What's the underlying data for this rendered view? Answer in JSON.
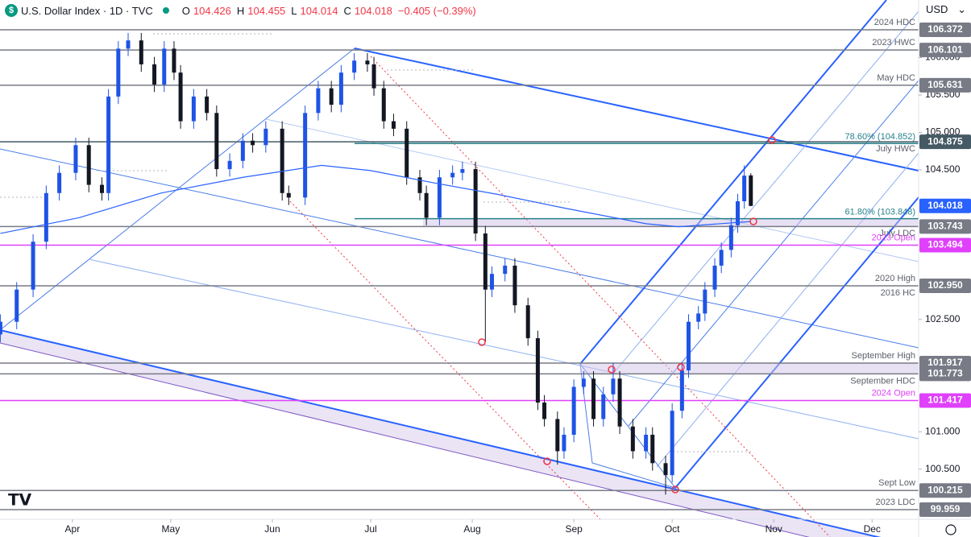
{
  "header": {
    "icon": "$",
    "title": "U.S. Dollar Index · 1D · TVC",
    "ohlc_labels": [
      "O",
      "H",
      "L",
      "C"
    ],
    "change": "−0.405 (−0.39%)",
    "currency": "USD"
  },
  "chart_data": {
    "type": "candlestick",
    "up_color": "#1e53e5",
    "down_color": "#131722",
    "xlim": [
      68.9,
      349.2
    ],
    "xticks": [
      {
        "value": 91,
        "label": "Apr"
      },
      {
        "value": 121,
        "label": "May"
      },
      {
        "value": 152,
        "label": "Jun"
      },
      {
        "value": 182,
        "label": "Jul"
      },
      {
        "value": 213,
        "label": "Aug"
      },
      {
        "value": 244,
        "label": "Sep"
      },
      {
        "value": 274,
        "label": "Oct"
      },
      {
        "value": 305,
        "label": "Nov"
      },
      {
        "value": 335,
        "label": "Dec"
      }
    ],
    "ylim": [
      99.83,
      106.77
    ],
    "yticks": [
      {
        "value": 106,
        "label": "106.000"
      },
      {
        "value": 105.5,
        "label": "105.500"
      },
      {
        "value": 105,
        "label": "105.000"
      },
      {
        "value": 104.5,
        "label": "104.500"
      },
      {
        "value": 102.5,
        "label": "102.500"
      },
      {
        "value": 101,
        "label": "101.000"
      },
      {
        "value": 100.5,
        "label": "100.500"
      }
    ],
    "grid": false,
    "x": [
      69,
      74,
      79,
      83,
      87,
      92,
      96,
      100,
      102,
      105,
      108,
      112,
      116,
      119,
      122,
      124,
      128,
      132,
      135,
      139,
      143,
      146,
      150,
      155,
      157,
      162,
      166,
      170,
      173,
      177,
      181,
      183,
      186,
      189,
      193,
      197,
      199,
      203,
      207,
      210,
      214,
      217,
      219,
      223,
      226,
      230,
      233,
      235,
      239,
      241,
      244,
      247,
      250,
      253,
      256,
      258,
      262,
      266,
      268,
      272,
      274,
      277,
      279,
      282,
      284,
      287,
      289,
      292,
      294,
      296,
      298
    ],
    "open": [
      102.3,
      102.47,
      102.9,
      103.54,
      104.19,
      104.46,
      104.83,
      104.3,
      104.19,
      105.48,
      106.12,
      106.23,
      105.91,
      105.64,
      106.12,
      105.8,
      105.15,
      105.48,
      105.26,
      104.51,
      104.62,
      104.89,
      104.83,
      105.05,
      104.19,
      104.13,
      105.26,
      105.59,
      105.37,
      105.8,
      105.96,
      105.91,
      105.59,
      105.15,
      105.05,
      104.4,
      104.19,
      103.86,
      104.4,
      104.46,
      104.51,
      103.65,
      102.9,
      103.11,
      103.22,
      102.69,
      102.25,
      101.39,
      101.17,
      100.74,
      100.96,
      101.6,
      101.71,
      101.17,
      101.5,
      101.71,
      101.07,
      100.74,
      100.96,
      100.58,
      100.42,
      101.28,
      101.82,
      102.47,
      102.58,
      102.9,
      103.22,
      103.43,
      103.76,
      104.08,
      104.426
    ],
    "high": [
      102.57,
      103.0,
      103.64,
      104.29,
      104.56,
      104.93,
      104.93,
      104.4,
      105.58,
      106.22,
      106.33,
      106.33,
      106.01,
      106.22,
      106.22,
      105.9,
      105.58,
      105.58,
      105.36,
      104.72,
      104.99,
      104.99,
      105.15,
      105.15,
      104.29,
      105.36,
      105.69,
      105.69,
      105.9,
      106.06,
      106.06,
      106.01,
      105.69,
      105.25,
      105.15,
      104.5,
      104.29,
      104.5,
      104.56,
      104.61,
      104.61,
      103.75,
      103.21,
      103.32,
      103.32,
      102.79,
      102.35,
      101.49,
      101.27,
      101.06,
      101.7,
      101.81,
      101.81,
      101.6,
      101.92,
      101.81,
      101.17,
      101.06,
      101.06,
      100.68,
      101.38,
      101.92,
      102.57,
      102.68,
      103.0,
      103.32,
      103.53,
      103.86,
      104.18,
      104.56,
      104.455
    ],
    "low": [
      102.2,
      102.37,
      102.8,
      103.44,
      104.09,
      104.36,
      104.2,
      104.09,
      104.09,
      105.38,
      106.02,
      105.81,
      105.54,
      105.54,
      105.7,
      105.05,
      105.05,
      105.16,
      104.41,
      104.41,
      104.52,
      104.73,
      104.73,
      104.09,
      104.03,
      104.03,
      105.16,
      105.27,
      105.27,
      105.7,
      105.81,
      105.49,
      105.05,
      104.95,
      104.3,
      104.09,
      103.76,
      103.76,
      104.3,
      104.36,
      103.55,
      102.2,
      102.8,
      103.01,
      102.59,
      102.15,
      101.29,
      101.07,
      100.56,
      100.64,
      100.86,
      101.5,
      101.07,
      101.07,
      101.4,
      100.97,
      100.64,
      100.64,
      100.48,
      100.16,
      100.32,
      101.18,
      101.72,
      102.37,
      102.48,
      102.8,
      103.12,
      103.33,
      103.66,
      103.98,
      104.014
    ],
    "close": [
      102.47,
      102.9,
      103.54,
      104.19,
      104.46,
      104.83,
      104.3,
      104.19,
      105.48,
      106.12,
      106.23,
      105.91,
      105.64,
      106.12,
      105.8,
      105.15,
      105.48,
      105.26,
      104.51,
      104.62,
      104.89,
      104.83,
      105.05,
      104.19,
      104.13,
      105.26,
      105.59,
      105.37,
      105.8,
      105.96,
      105.91,
      105.59,
      105.15,
      105.05,
      104.4,
      104.19,
      103.86,
      104.4,
      104.46,
      104.51,
      103.65,
      102.9,
      103.11,
      103.22,
      102.69,
      102.25,
      101.39,
      101.17,
      100.74,
      100.96,
      101.6,
      101.71,
      101.17,
      101.5,
      101.71,
      101.07,
      100.74,
      100.96,
      100.58,
      100.42,
      101.28,
      101.82,
      102.47,
      102.58,
      102.9,
      103.22,
      103.43,
      103.76,
      104.08,
      104.423,
      104.018
    ],
    "ma": {
      "color": "#2962ff",
      "x": [
        69,
        93,
        118,
        143,
        167,
        182,
        202,
        221,
        241,
        266,
        276,
        298
      ],
      "values": [
        103.65,
        103.86,
        104.19,
        104.4,
        104.56,
        104.49,
        104.32,
        104.17,
        103.99,
        103.78,
        103.74,
        103.81
      ]
    },
    "current_color": "#2962ff",
    "levels": [
      {
        "price": 106.372,
        "names": [
          "2024 HDC"
        ],
        "color": "#787b86"
      },
      {
        "price": 106.101,
        "names": [
          "2023 HWC"
        ],
        "color": "#787b86"
      },
      {
        "price": 105.631,
        "names": [
          "May HDC"
        ],
        "color": "#787b86"
      },
      {
        "price": 104.875,
        "names": [
          "July HWC"
        ],
        "color": "#455a64"
      },
      {
        "price": 103.743,
        "names": [
          "July LDC"
        ],
        "color": "#787b86"
      },
      {
        "price": 103.494,
        "names": [
          "2023 Open"
        ],
        "color": "#e040fb"
      },
      {
        "price": {
          "value": 102.95,
          "label": "102.950"
        },
        "names": [
          "2020 High",
          "2016 HC"
        ],
        "color": "#787b86"
      },
      {
        "price": 101.917,
        "names": [
          "September High"
        ],
        "color": "#787b86"
      },
      {
        "price": 101.773,
        "names": [
          "September HDC"
        ],
        "color": "#787b86"
      },
      {
        "price": 101.417,
        "names": [
          "2024 Open"
        ],
        "color": "#e040fb"
      },
      {
        "price": 100.215,
        "names": [
          "Sept Low"
        ],
        "color": "#787b86"
      },
      {
        "price": 99.959,
        "names": [
          "2023 LDC"
        ],
        "color": "#787b86"
      }
    ],
    "fibs": [
      {
        "value": 104.852,
        "label": "78.60% (104.852)",
        "color": "#26808a"
      },
      {
        "value": 103.848,
        "label": "61.80% (103.848)",
        "color": "#26808a"
      }
    ]
  }
}
